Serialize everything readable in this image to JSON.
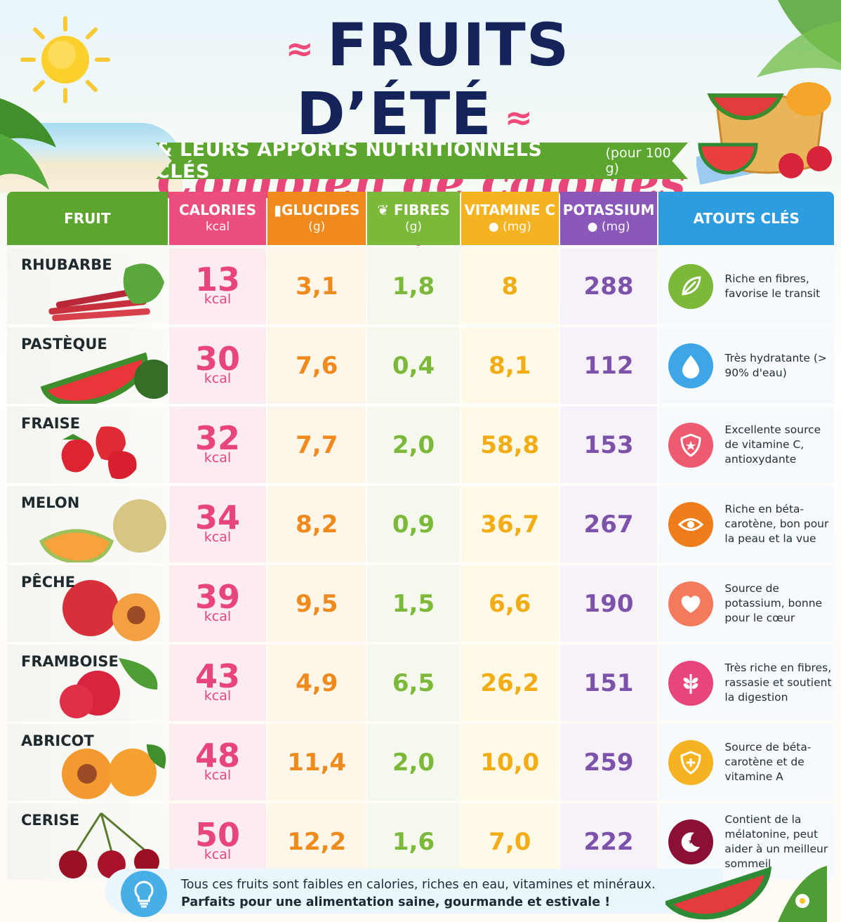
{
  "header": {
    "title": "FRUITS D’ÉTÉ",
    "subtitle": "Combien de calories ?",
    "ribbon_main": "& LEURS APPORTS NUTRITIONNELS CLÉS",
    "ribbon_small": "(pour 100 g)"
  },
  "columns": {
    "fruit": "FRUIT",
    "calories": "CALORIES",
    "calories_unit": "kcal",
    "glucides": "GLUCIDES",
    "glucides_unit": "(g)",
    "fibres": "FIBRES",
    "fibres_unit": "(g)",
    "vitamine": "VITAMINE C",
    "vitamine_unit": "(mg)",
    "potassium": "POTASSIUM",
    "potassium_unit": "(mg)",
    "atouts": "ATOUTS CLÉS"
  },
  "rows": [
    {
      "name": "RHUBARBE",
      "cal": "13",
      "kcal": "kcal",
      "glu": "3,1",
      "fib": "1,8",
      "vit": "8",
      "pot": "288",
      "atout": "Riche en fibres, favorise le transit",
      "icon": "leaf-icon",
      "icon_color": "#7cb83a"
    },
    {
      "name": "PASTÈQUE",
      "cal": "30",
      "kcal": "kcal",
      "glu": "7,6",
      "fib": "0,4",
      "vit": "8,1",
      "pot": "112",
      "atout": "Très hydratante (> 90% d'eau)",
      "icon": "water-drop-icon",
      "icon_color": "#3ea6e6"
    },
    {
      "name": "FRAISE",
      "cal": "32",
      "kcal": "kcal",
      "glu": "7,7",
      "fib": "2,0",
      "vit": "58,8",
      "pot": "153",
      "atout": "Excellente source de vitamine C, antioxydante",
      "icon": "shield-icon",
      "icon_color": "#ee5a6f"
    },
    {
      "name": "MELON",
      "cal": "34",
      "kcal": "kcal",
      "glu": "8,2",
      "fib": "0,9",
      "vit": "36,7",
      "pot": "267",
      "atout": "Riche en béta-carotène, bon pour la peau et la vue",
      "icon": "eye-icon",
      "icon_color": "#f07d1c"
    },
    {
      "name": "PÊCHE",
      "cal": "39",
      "kcal": "kcal",
      "glu": "9,5",
      "fib": "1,5",
      "vit": "6,6",
      "pot": "190",
      "atout": "Source de potassium, bonne pour le cœur",
      "icon": "heart-icon",
      "icon_color": "#f47a5e"
    },
    {
      "name": "FRAMBOISE",
      "cal": "43",
      "kcal": "kcal",
      "glu": "4,9",
      "fib": "6,5",
      "vit": "26,2",
      "pot": "151",
      "atout": "Très riche en fibres, rassasie et soutient la digestion",
      "icon": "wheat-icon",
      "icon_color": "#e8457a"
    },
    {
      "name": "ABRICOT",
      "cal": "48",
      "kcal": "kcal",
      "glu": "11,4",
      "fib": "2,0",
      "vit": "10,0",
      "pot": "259",
      "atout": "Source de béta-carotène et de vitamine A",
      "icon": "shield-plus-icon",
      "icon_color": "#f5b321"
    },
    {
      "name": "CERISE",
      "cal": "50",
      "kcal": "kcal",
      "glu": "12,2",
      "fib": "1,6",
      "vit": "7,0",
      "pot": "222",
      "atout": "Contient de la mélatonine, peut aider à un meilleur sommeil",
      "icon": "moon-star-icon",
      "icon_color": "#8c1036"
    }
  ],
  "footer": {
    "line1": "Tous ces fruits sont faibles en calories, riches en eau, vitamines et minéraux.",
    "line2": "Parfaits pour une alimentation saine, gourmande et estivale !",
    "icon": "lightbulb-icon"
  }
}
